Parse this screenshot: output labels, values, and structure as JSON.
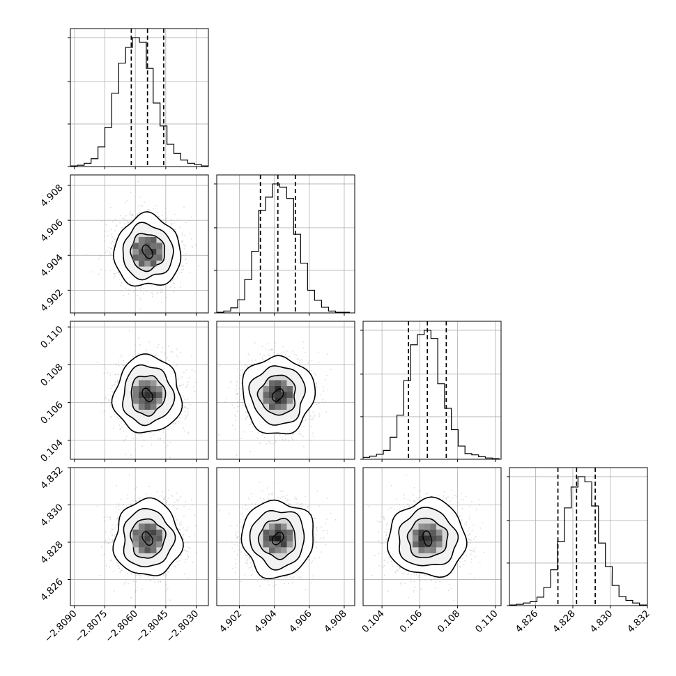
{
  "chart_data": {
    "type": "corner",
    "n_params": 4,
    "params": [
      {
        "index": 0,
        "range": [
          -2.8092,
          -2.8024
        ],
        "ticks": [
          -2.809,
          -2.8075,
          -2.806,
          -2.8045,
          -2.803
        ],
        "tick_labels": [
          "−2.8090",
          "−2.8075",
          "−2.8060",
          "−2.8045",
          "−2.8030"
        ],
        "quantiles": [
          -2.8062,
          -2.8054,
          -2.8046
        ],
        "hist_centers": [
          -2.80903,
          -2.80869,
          -2.80835,
          -2.80801,
          -2.80767,
          -2.80733,
          -2.80699,
          -2.80665,
          -2.80631,
          -2.80597,
          -2.80563,
          -2.80529,
          -2.80495,
          -2.80461,
          -2.80427,
          -2.80393,
          -2.80359,
          -2.80325,
          -2.80291,
          -2.80257
        ],
        "hist_counts": [
          1,
          2,
          5,
          12,
          30,
          60,
          112,
          158,
          182,
          197,
          190,
          150,
          97,
          62,
          34,
          20,
          10,
          5,
          3,
          1
        ]
      },
      {
        "index": 1,
        "range": [
          4.9007,
          4.9086
        ],
        "ticks": [
          4.902,
          4.904,
          4.906,
          4.908
        ],
        "tick_labels": [
          "4.902",
          "4.904",
          "4.906",
          "4.908"
        ],
        "quantiles": [
          4.9032,
          4.9042,
          4.9052
        ],
        "hist_centers": [
          4.9009,
          4.9013,
          4.9017,
          4.9021,
          4.9025,
          4.9029,
          4.9033,
          4.9037,
          4.9041,
          4.9045,
          4.9049,
          4.9053,
          4.9057,
          4.9061,
          4.9065,
          4.9069,
          4.9073,
          4.9077,
          4.9081
        ],
        "hist_counts": [
          1,
          3,
          8,
          21,
          53,
          98,
          163,
          184,
          205,
          200,
          182,
          125,
          79,
          36,
          20,
          9,
          3,
          1,
          1
        ]
      },
      {
        "index": 2,
        "range": [
          0.103,
          0.1103
        ],
        "ticks": [
          0.104,
          0.106,
          0.108,
          0.11
        ],
        "tick_labels": [
          "0.104",
          "0.106",
          "0.108",
          "0.110"
        ],
        "quantiles": [
          0.1054,
          0.1064,
          0.1074
        ],
        "hist_centers": [
          0.10317,
          0.10353,
          0.10389,
          0.10425,
          0.10461,
          0.10497,
          0.10533,
          0.10569,
          0.10605,
          0.10641,
          0.10677,
          0.10713,
          0.10749,
          0.10785,
          0.10821,
          0.10857,
          0.10893,
          0.10929,
          0.10965,
          0.11001
        ],
        "hist_counts": [
          3,
          5,
          8,
          14,
          35,
          70,
          125,
          182,
          198,
          205,
          192,
          120,
          81,
          47,
          21,
          9,
          7,
          4,
          2,
          1
        ]
      },
      {
        "index": 3,
        "range": [
          4.8246,
          4.832
        ],
        "ticks": [
          4.826,
          4.828,
          4.83,
          4.832
        ],
        "tick_labels": [
          "4.826",
          "4.828",
          "4.830",
          "4.832"
        ],
        "quantiles": [
          4.8272,
          4.8282,
          4.8292
        ],
        "hist_centers": [
          4.82479,
          4.82516,
          4.82553,
          4.82589,
          4.82626,
          4.82663,
          4.82699,
          4.82736,
          4.82773,
          4.82809,
          4.82846,
          4.82883,
          4.82919,
          4.82956,
          4.82993,
          4.83029,
          4.83066,
          4.83103,
          4.83139,
          4.83176
        ],
        "hist_counts": [
          1,
          2,
          4,
          6,
          13,
          28,
          55,
          98,
          150,
          182,
          198,
          190,
          153,
          96,
          60,
          31,
          14,
          8,
          4,
          1
        ]
      }
    ],
    "contours": {
      "shown": true,
      "levels": 3,
      "data_points": true,
      "density_shading": true
    },
    "grid": true
  }
}
